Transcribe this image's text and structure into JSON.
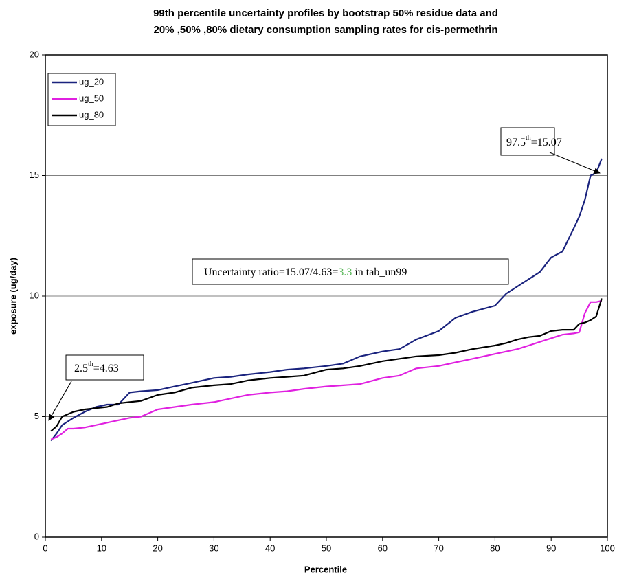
{
  "chart_data": {
    "type": "line",
    "title": [
      "99th percentile uncertainty profiles by bootstrap 50% residue data and",
      "20% ,50% ,80% dietary consumption sampling rates for cis-permethrin"
    ],
    "x_label": "Percentile",
    "y_label": "exposure (ug/day)",
    "xlim": [
      0,
      100
    ],
    "ylim": [
      0,
      20
    ],
    "xticks": [
      0,
      10,
      20,
      30,
      40,
      50,
      60,
      70,
      80,
      90,
      100
    ],
    "yticks": [
      0,
      5,
      10,
      15,
      20
    ],
    "grid": true,
    "legend": "upper left",
    "x": [
      1,
      2,
      3,
      4,
      5,
      7,
      9,
      11,
      13,
      15,
      17,
      20,
      23,
      26,
      30,
      33,
      36,
      40,
      43,
      46,
      50,
      53,
      56,
      60,
      63,
      66,
      70,
      73,
      76,
      80,
      82,
      84,
      86,
      88,
      90,
      92,
      94,
      95,
      96,
      97,
      98,
      99
    ],
    "series": [
      {
        "name": "ug_20",
        "color": "#1a237e",
        "values": [
          4.0,
          4.3,
          4.65,
          4.8,
          4.95,
          5.2,
          5.4,
          5.5,
          5.5,
          6.0,
          6.05,
          6.1,
          6.25,
          6.4,
          6.6,
          6.65,
          6.75,
          6.85,
          6.95,
          7.0,
          7.1,
          7.2,
          7.5,
          7.7,
          7.8,
          8.2,
          8.55,
          9.1,
          9.35,
          9.6,
          10.1,
          10.4,
          10.7,
          11.0,
          11.6,
          11.85,
          12.8,
          13.3,
          14.0,
          15.0,
          15.1,
          15.7
        ]
      },
      {
        "name": "ug_50",
        "color": "#e020e0",
        "values": [
          4.05,
          4.15,
          4.3,
          4.5,
          4.5,
          4.55,
          4.65,
          4.75,
          4.85,
          4.95,
          5.0,
          5.3,
          5.4,
          5.5,
          5.6,
          5.75,
          5.9,
          6.0,
          6.05,
          6.15,
          6.25,
          6.3,
          6.35,
          6.6,
          6.7,
          7.0,
          7.1,
          7.25,
          7.4,
          7.6,
          7.7,
          7.8,
          7.95,
          8.1,
          8.25,
          8.4,
          8.45,
          8.5,
          9.3,
          9.75,
          9.75,
          9.8
        ]
      },
      {
        "name": "ug_80",
        "color": "#000000",
        "values": [
          4.4,
          4.6,
          5.0,
          5.1,
          5.2,
          5.3,
          5.35,
          5.4,
          5.55,
          5.6,
          5.65,
          5.9,
          6.0,
          6.2,
          6.3,
          6.35,
          6.5,
          6.6,
          6.65,
          6.7,
          6.95,
          7.0,
          7.1,
          7.3,
          7.4,
          7.5,
          7.55,
          7.65,
          7.8,
          7.95,
          8.05,
          8.2,
          8.3,
          8.35,
          8.55,
          8.6,
          8.6,
          8.85,
          8.9,
          9.0,
          9.15,
          9.9
        ]
      }
    ],
    "annotations": [
      {
        "base": "97.5",
        "sup": "th",
        "rest": "=15.07"
      },
      {
        "before": "Uncertainty ratio=15.07/4.63=",
        "highlight": "3.3",
        "after": " in tab_un99"
      },
      {
        "base": "2.5",
        "sup": "th",
        "rest": "=4.63"
      }
    ]
  }
}
